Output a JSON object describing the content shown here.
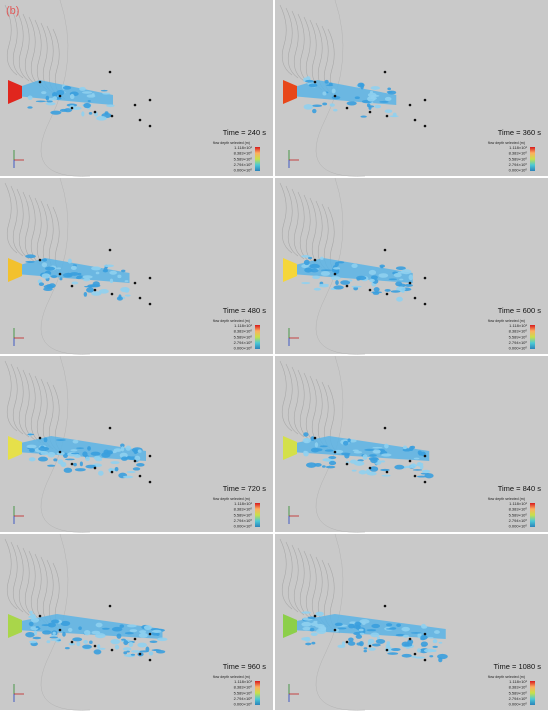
{
  "label": "(b)",
  "legend_title": "flow depth selected (m)",
  "legend_ticks": [
    "1.118×10¹",
    "8.383×10⁰",
    "5.589×10⁰",
    "2.794×10⁰",
    "0.000×10⁰"
  ],
  "panels": [
    {
      "time": "Time = 240 s"
    },
    {
      "time": "Time = 360 s"
    },
    {
      "time": "Time = 480 s"
    },
    {
      "time": "Time = 600 s"
    },
    {
      "time": "Time = 720 s"
    },
    {
      "time": "Time = 840 s"
    },
    {
      "time": "Time = 960 s"
    },
    {
      "time": "Time = 1080 s"
    }
  ]
}
